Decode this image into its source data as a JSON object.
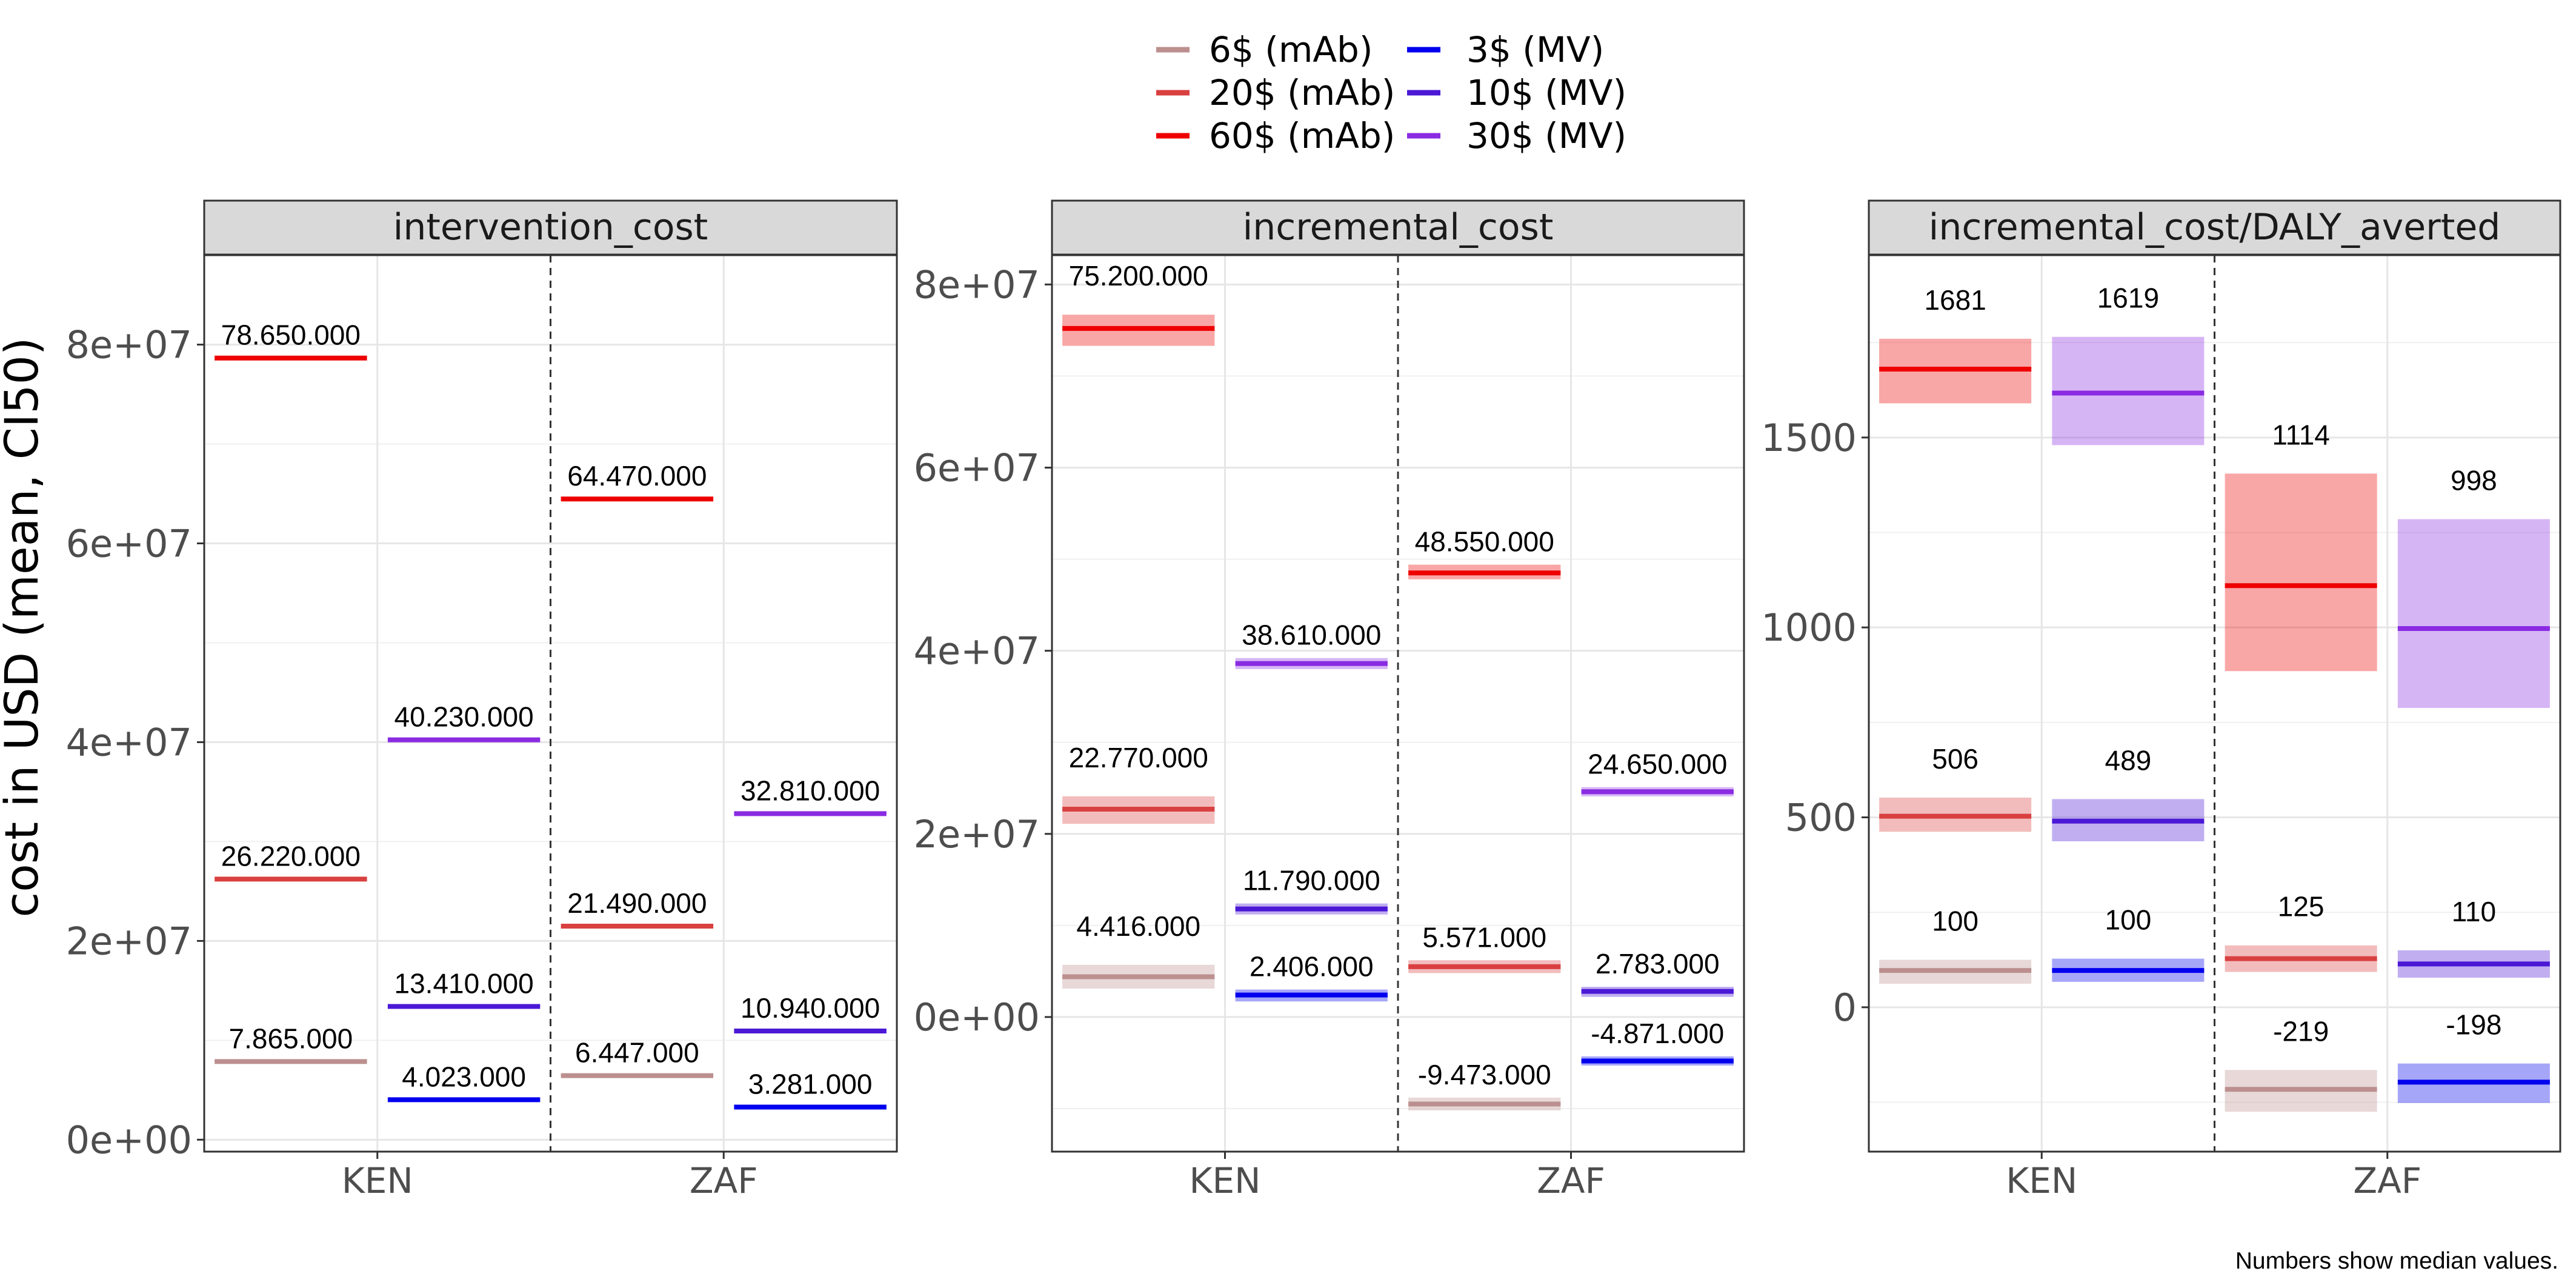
{
  "chart_data": {
    "type": "crossbar",
    "ylabel": "cost in USD (mean, CI50)",
    "caption": "Numbers show median values.",
    "legend": {
      "placement": "top",
      "entries": [
        {
          "key": "mab6",
          "label": "6$ (mAb)",
          "color": "#bc8f8f"
        },
        {
          "key": "mab20",
          "label": "20$ (mAb)",
          "color": "#d94040"
        },
        {
          "key": "mab60",
          "label": "60$ (mAb)",
          "color": "#ee0000"
        },
        {
          "key": "mv3",
          "label": "3$ (MV)",
          "color": "#0000ee"
        },
        {
          "key": "mv10",
          "label": "10$ (MV)",
          "color": "#4b18d6"
        },
        {
          "key": "mv30",
          "label": "30$ (MV)",
          "color": "#8a2be2"
        }
      ]
    },
    "categories": [
      "KEN",
      "ZAF"
    ],
    "panels": [
      {
        "title": "intervention_cost",
        "ylim": [
          -1200000,
          89000000
        ],
        "ticks": [
          0,
          20000000,
          40000000,
          60000000,
          80000000
        ],
        "tick_labels": [
          "0e+00",
          "2e+07",
          "4e+07",
          "6e+07",
          "8e+07"
        ],
        "points": [
          {
            "series": "mab6",
            "country": "KEN",
            "mean": 7865000,
            "low": 7865000,
            "high": 7865000,
            "label": "7.865.000"
          },
          {
            "series": "mab20",
            "country": "KEN",
            "mean": 26220000,
            "low": 26220000,
            "high": 26220000,
            "label": "26.220.000"
          },
          {
            "series": "mab60",
            "country": "KEN",
            "mean": 78650000,
            "low": 78650000,
            "high": 78650000,
            "label": "78.650.000"
          },
          {
            "series": "mv3",
            "country": "KEN",
            "mean": 4023000,
            "low": 4023000,
            "high": 4023000,
            "label": "4.023.000"
          },
          {
            "series": "mv10",
            "country": "KEN",
            "mean": 13410000,
            "low": 13410000,
            "high": 13410000,
            "label": "13.410.000"
          },
          {
            "series": "mv30",
            "country": "KEN",
            "mean": 40230000,
            "low": 40230000,
            "high": 40230000,
            "label": "40.230.000"
          },
          {
            "series": "mab6",
            "country": "ZAF",
            "mean": 6447000,
            "low": 6447000,
            "high": 6447000,
            "label": "6.447.000"
          },
          {
            "series": "mab20",
            "country": "ZAF",
            "mean": 21490000,
            "low": 21490000,
            "high": 21490000,
            "label": "21.490.000"
          },
          {
            "series": "mab60",
            "country": "ZAF",
            "mean": 64470000,
            "low": 64470000,
            "high": 64470000,
            "label": "64.470.000"
          },
          {
            "series": "mv3",
            "country": "ZAF",
            "mean": 3281000,
            "low": 3281000,
            "high": 3281000,
            "label": "3.281.000"
          },
          {
            "series": "mv10",
            "country": "ZAF",
            "mean": 10940000,
            "low": 10940000,
            "high": 10940000,
            "label": "10.940.000"
          },
          {
            "series": "mv30",
            "country": "ZAF",
            "mean": 32810000,
            "low": 32810000,
            "high": 32810000,
            "label": "32.810.000"
          }
        ]
      },
      {
        "title": "incremental_cost",
        "ylim": [
          -14700000,
          83200000
        ],
        "ticks": [
          0,
          20000000,
          40000000,
          60000000,
          80000000
        ],
        "tick_labels": [
          "0e+00",
          "2e+07",
          "4e+07",
          "6e+07",
          "8e+07"
        ],
        "points": [
          {
            "series": "mab6",
            "country": "KEN",
            "mean": 4400000,
            "low": 3100000,
            "high": 5700000,
            "label": "4.416.000"
          },
          {
            "series": "mab20",
            "country": "KEN",
            "mean": 22700000,
            "low": 21100000,
            "high": 24100000,
            "label": "22.770.000"
          },
          {
            "series": "mab60",
            "country": "KEN",
            "mean": 75200000,
            "low": 73300000,
            "high": 76700000,
            "label": "75.200.000"
          },
          {
            "series": "mv3",
            "country": "KEN",
            "mean": 2400000,
            "low": 1700000,
            "high": 3000000,
            "label": "2.406.000"
          },
          {
            "series": "mv10",
            "country": "KEN",
            "mean": 11800000,
            "low": 11200000,
            "high": 12400000,
            "label": "11.790.000"
          },
          {
            "series": "mv30",
            "country": "KEN",
            "mean": 38600000,
            "low": 38000000,
            "high": 39200000,
            "label": "38.610.000"
          },
          {
            "series": "mab6",
            "country": "ZAF",
            "mean": -9500000,
            "low": -10200000,
            "high": -8800000,
            "label": "-9.473.000"
          },
          {
            "series": "mab20",
            "country": "ZAF",
            "mean": 5500000,
            "low": 4800000,
            "high": 6200000,
            "label": "5.571.000"
          },
          {
            "series": "mab60",
            "country": "ZAF",
            "mean": 48500000,
            "low": 47800000,
            "high": 49400000,
            "label": "48.550.000"
          },
          {
            "series": "mv3",
            "country": "ZAF",
            "mean": -4800000,
            "low": -5300000,
            "high": -4300000,
            "label": "-4.871.000"
          },
          {
            "series": "mv10",
            "country": "ZAF",
            "mean": 2800000,
            "low": 2200000,
            "high": 3300000,
            "label": "2.783.000"
          },
          {
            "series": "mv30",
            "country": "ZAF",
            "mean": 24600000,
            "low": 24100000,
            "high": 25100000,
            "label": "24.650.000"
          }
        ]
      },
      {
        "title": "incremental_cost/DALY_averted",
        "ylim": [
          -380,
          1980
        ],
        "ticks": [
          0,
          500,
          1000,
          1500
        ],
        "tick_labels": [
          "0",
          "500",
          "1000",
          "1500"
        ],
        "points": [
          {
            "series": "mab6",
            "country": "KEN",
            "mean": 97,
            "low": 62,
            "high": 125,
            "label": "100"
          },
          {
            "series": "mab20",
            "country": "KEN",
            "mean": 503,
            "low": 462,
            "high": 552,
            "label": "506"
          },
          {
            "series": "mab60",
            "country": "KEN",
            "mean": 1680,
            "low": 1590,
            "high": 1760,
            "label": "1681"
          },
          {
            "series": "mv3",
            "country": "KEN",
            "mean": 97,
            "low": 67,
            "high": 128,
            "label": "100"
          },
          {
            "series": "mv10",
            "country": "KEN",
            "mean": 490,
            "low": 437,
            "high": 548,
            "label": "489"
          },
          {
            "series": "mv30",
            "country": "KEN",
            "mean": 1617,
            "low": 1480,
            "high": 1765,
            "label": "1619"
          },
          {
            "series": "mab6",
            "country": "ZAF",
            "mean": -216,
            "low": -275,
            "high": -165,
            "label": "-219"
          },
          {
            "series": "mab20",
            "country": "ZAF",
            "mean": 128,
            "low": 93,
            "high": 163,
            "label": "125"
          },
          {
            "series": "mab60",
            "country": "ZAF",
            "mean": 1110,
            "low": 885,
            "high": 1405,
            "label": "1114"
          },
          {
            "series": "mv3",
            "country": "ZAF",
            "mean": -197,
            "low": -252,
            "high": -148,
            "label": "-198"
          },
          {
            "series": "mv10",
            "country": "ZAF",
            "mean": 114,
            "low": 78,
            "high": 150,
            "label": "110"
          },
          {
            "series": "mv30",
            "country": "ZAF",
            "mean": 997,
            "low": 788,
            "high": 1285,
            "label": "998"
          }
        ]
      }
    ]
  }
}
